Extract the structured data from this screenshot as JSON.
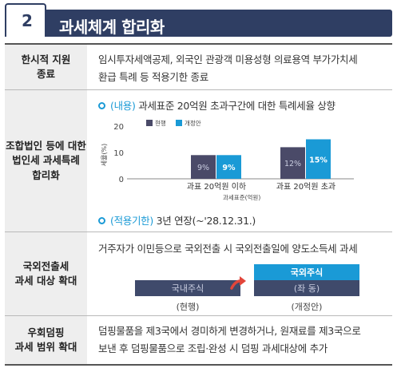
{
  "header": {
    "number": "2",
    "title": "과세체계 합리화"
  },
  "rows": [
    {
      "label": "한시적 지원\n종료",
      "text": "임시투자세액공제, 외국인 관광객 미용성형 의료용역 부가가치세\n환급 특례 등 적용기한 종료"
    },
    {
      "label": "조합법인 등에 대한\n법인세 과세특례\n합리화",
      "content_bullet": {
        "tag": "(내용)",
        "text": "과세표준 20억원 초과구간에 대한 특례세율 상향"
      },
      "validity_bullet": {
        "tag": "(적용기한)",
        "text": "3년 연장(~'28.12.31.)"
      }
    },
    {
      "label": "국외전출세\n과세 대상 확대",
      "text": "거주자가 이민등으로 국외전출 시 국외전출일에 양도소득세 과세",
      "diagram": {
        "before_box": "국내주식",
        "after_top_box": "국외주식",
        "after_bottom_box": "(좌 동)",
        "before_caption": "(현행)",
        "after_caption": "(개정안)",
        "arrow_icon": "curved-arrow-icon",
        "colors": {
          "before": "#3f4a6b",
          "after": "#1a9ad6",
          "arrow": "#e2463b"
        }
      }
    },
    {
      "label": "우회덤핑\n과세 범위 확대",
      "text": "덤핑물품을 제3국에서 경미하게 변경하거나, 원재료를 제3국으로\n보낸 후 덤핑물품으로 조립·완성 시 덤핑 과세대상에 추가"
    }
  ],
  "chart_data": {
    "type": "bar",
    "categories": [
      "과표 20억원 이하",
      "과표 20억원 초과"
    ],
    "series": [
      {
        "name": "현행",
        "values": [
          9,
          12
        ],
        "color": "#4a4a68"
      },
      {
        "name": "개정안",
        "values": [
          9,
          15
        ],
        "color": "#1a9ad6"
      }
    ],
    "data_labels": [
      [
        "9%",
        "9%"
      ],
      [
        "12%",
        "15%"
      ]
    ],
    "ylabel": "세율(%)",
    "xlabel": "과세표준(억원)",
    "yticks": [
      0,
      10,
      20
    ],
    "ylim": [
      0,
      20
    ],
    "legend": "top-left"
  }
}
